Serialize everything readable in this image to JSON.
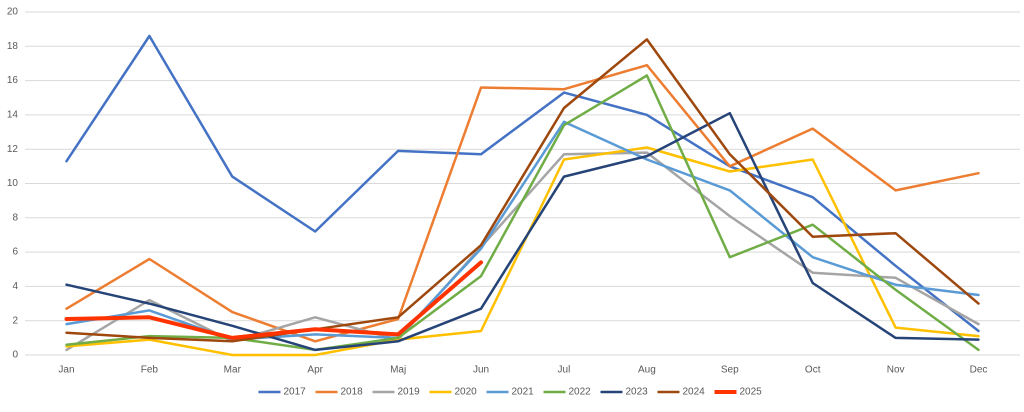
{
  "chart_data": {
    "type": "line",
    "categories": [
      "Jan",
      "Feb",
      "Mar",
      "Apr",
      "Maj",
      "Jun",
      "Jul",
      "Aug",
      "Sep",
      "Oct",
      "Nov",
      "Dec"
    ],
    "series": [
      {
        "name": "2017",
        "color": "#4472c4",
        "values": [
          11.3,
          18.6,
          10.4,
          7.2,
          11.9,
          11.7,
          15.3,
          14.0,
          11.0,
          9.2,
          5.2,
          1.4
        ]
      },
      {
        "name": "2018",
        "color": "#ed7d31",
        "values": [
          2.7,
          5.6,
          2.5,
          0.8,
          2.1,
          15.6,
          15.5,
          16.9,
          11.0,
          13.2,
          9.6,
          10.6
        ]
      },
      {
        "name": "2019",
        "color": "#a5a5a5",
        "values": [
          0.3,
          3.2,
          0.8,
          2.2,
          0.9,
          6.3,
          11.7,
          11.8,
          8.1,
          4.8,
          4.5,
          1.8
        ]
      },
      {
        "name": "2020",
        "color": "#ffc000",
        "values": [
          0.5,
          0.9,
          0.0,
          0.0,
          0.9,
          1.4,
          11.4,
          12.1,
          10.7,
          11.4,
          1.6,
          1.1
        ]
      },
      {
        "name": "2021",
        "color": "#5b9bd5",
        "values": [
          1.8,
          2.6,
          0.9,
          1.2,
          1.0,
          6.2,
          13.6,
          11.4,
          9.6,
          5.7,
          4.1,
          3.5
        ]
      },
      {
        "name": "2022",
        "color": "#70ad47",
        "values": [
          0.6,
          1.1,
          1.0,
          0.3,
          1.0,
          4.6,
          13.4,
          16.3,
          5.7,
          7.6,
          3.8,
          0.3
        ]
      },
      {
        "name": "2023",
        "color": "#264478",
        "values": [
          4.1,
          3.0,
          1.7,
          0.3,
          0.8,
          2.7,
          10.4,
          11.6,
          14.1,
          4.2,
          1.0,
          0.9
        ]
      },
      {
        "name": "2024",
        "color": "#9e480e",
        "values": [
          1.3,
          1.0,
          0.8,
          1.5,
          2.2,
          6.4,
          14.4,
          18.4,
          11.7,
          6.9,
          7.1,
          3.0
        ]
      },
      {
        "name": "2025",
        "color": "#ff3300",
        "values": [
          2.1,
          2.2,
          1.0,
          1.5,
          1.2,
          5.4,
          null,
          null,
          null,
          null,
          null,
          null
        ]
      }
    ],
    "ylim": [
      0,
      20
    ],
    "yticks": [
      0,
      2,
      4,
      6,
      8,
      10,
      12,
      14,
      16,
      18,
      20
    ],
    "grid": true,
    "legend": "bottom"
  }
}
